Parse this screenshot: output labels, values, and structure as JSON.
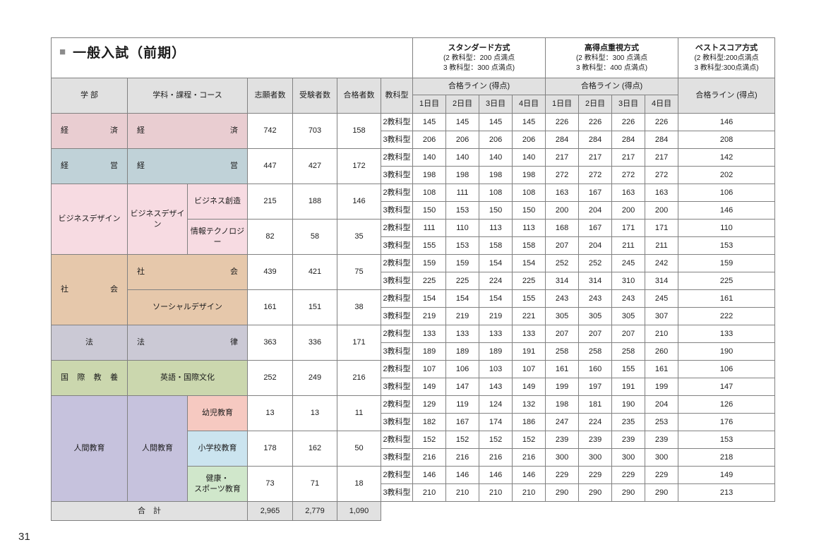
{
  "page": {
    "title_square": "■",
    "title": "一般入試（前期）",
    "page_number": "31"
  },
  "colors": {
    "header_bg": "#e1e1e1",
    "total_bg": "#e1e1e1",
    "border": "#818181",
    "title_square": "#8c8c8c"
  },
  "table": {
    "method_headers": [
      {
        "lines": [
          "スタンダード方式",
          "(2 教科型：200 点満点",
          "3 教科型：300 点満点)"
        ]
      },
      {
        "lines": [
          "高得点重視方式",
          "(2 教科型：300 点満点",
          "3 教科型：400 点満点)"
        ]
      },
      {
        "lines": [
          "ベストスコア方式",
          "(2 教科型:200点満点",
          "3 教科型:300点満点)"
        ]
      }
    ],
    "headers": {
      "faculty": "学 部",
      "department": "学科・課程・コース",
      "applicants": "志願者数",
      "examinees": "受験者数",
      "accepted": "合格者数",
      "subject_type": "教科型",
      "pass_line": "合格ライン (得点)",
      "days": [
        "1日目",
        "2日目",
        "3日目",
        "4日目"
      ]
    },
    "groups": [
      {
        "faculty": "経済",
        "dist": true,
        "color": "#e9cdd1",
        "departments": [
          {
            "name": "経済",
            "dist": true,
            "full": true,
            "courses": [
              {
                "name": null,
                "applicants": "742",
                "examinees": "703",
                "accepted": "158",
                "type_rows": [
                  {
                    "type": "2教科型",
                    "std": [
                      "145",
                      "145",
                      "145",
                      "145"
                    ],
                    "high": [
                      "226",
                      "226",
                      "226",
                      "226"
                    ],
                    "best": "146"
                  },
                  {
                    "type": "3教科型",
                    "std": [
                      "206",
                      "206",
                      "206",
                      "206"
                    ],
                    "high": [
                      "284",
                      "284",
                      "284",
                      "284"
                    ],
                    "best": "208"
                  }
                ]
              }
            ]
          }
        ]
      },
      {
        "faculty": "経営",
        "dist": true,
        "color": "#c0d2d8",
        "departments": [
          {
            "name": "経営",
            "dist": true,
            "full": true,
            "courses": [
              {
                "name": null,
                "applicants": "447",
                "examinees": "427",
                "accepted": "172",
                "type_rows": [
                  {
                    "type": "2教科型",
                    "std": [
                      "140",
                      "140",
                      "140",
                      "140"
                    ],
                    "high": [
                      "217",
                      "217",
                      "217",
                      "217"
                    ],
                    "best": "142"
                  },
                  {
                    "type": "3教科型",
                    "std": [
                      "198",
                      "198",
                      "198",
                      "198"
                    ],
                    "high": [
                      "272",
                      "272",
                      "272",
                      "272"
                    ],
                    "best": "202"
                  }
                ]
              }
            ]
          }
        ]
      },
      {
        "faculty": "ビジネスデザイン",
        "dist": false,
        "color": "#f7dbe2",
        "departments": [
          {
            "name": "ビジネスデザイン",
            "dist": false,
            "full": false,
            "courses": [
              {
                "name": "ビジネス創造",
                "applicants": "215",
                "examinees": "188",
                "accepted": "146",
                "type_rows": [
                  {
                    "type": "2教科型",
                    "std": [
                      "108",
                      "111",
                      "108",
                      "108"
                    ],
                    "high": [
                      "163",
                      "167",
                      "163",
                      "163"
                    ],
                    "best": "106"
                  },
                  {
                    "type": "3教科型",
                    "std": [
                      "150",
                      "153",
                      "150",
                      "150"
                    ],
                    "high": [
                      "200",
                      "204",
                      "200",
                      "200"
                    ],
                    "best": "146"
                  }
                ]
              },
              {
                "name": "情報テクノロジー",
                "applicants": "82",
                "examinees": "58",
                "accepted": "35",
                "type_rows": [
                  {
                    "type": "2教科型",
                    "std": [
                      "111",
                      "110",
                      "113",
                      "113"
                    ],
                    "high": [
                      "168",
                      "167",
                      "171",
                      "171"
                    ],
                    "best": "110"
                  },
                  {
                    "type": "3教科型",
                    "std": [
                      "155",
                      "153",
                      "158",
                      "158"
                    ],
                    "high": [
                      "207",
                      "204",
                      "211",
                      "211"
                    ],
                    "best": "153"
                  }
                ]
              }
            ]
          }
        ]
      },
      {
        "faculty": "社会",
        "dist": true,
        "color": "#e6c8ab",
        "departments": [
          {
            "name": "社会",
            "dist": true,
            "full": true,
            "courses": [
              {
                "name": null,
                "applicants": "439",
                "examinees": "421",
                "accepted": "75",
                "type_rows": [
                  {
                    "type": "2教科型",
                    "std": [
                      "159",
                      "159",
                      "154",
                      "154"
                    ],
                    "high": [
                      "252",
                      "252",
                      "245",
                      "242"
                    ],
                    "best": "159"
                  },
                  {
                    "type": "3教科型",
                    "std": [
                      "225",
                      "225",
                      "224",
                      "225"
                    ],
                    "high": [
                      "314",
                      "314",
                      "310",
                      "314"
                    ],
                    "best": "225"
                  }
                ]
              }
            ]
          },
          {
            "name": "ソーシャルデザイン",
            "dist": false,
            "full": true,
            "courses": [
              {
                "name": null,
                "applicants": "161",
                "examinees": "151",
                "accepted": "38",
                "type_rows": [
                  {
                    "type": "2教科型",
                    "std": [
                      "154",
                      "154",
                      "154",
                      "155"
                    ],
                    "high": [
                      "243",
                      "243",
                      "243",
                      "245"
                    ],
                    "best": "161"
                  },
                  {
                    "type": "3教科型",
                    "std": [
                      "219",
                      "219",
                      "219",
                      "221"
                    ],
                    "high": [
                      "305",
                      "305",
                      "305",
                      "307"
                    ],
                    "best": "222"
                  }
                ]
              }
            ]
          }
        ]
      },
      {
        "faculty": "法",
        "dist": false,
        "color": "#cbc9d5",
        "departments": [
          {
            "name": "法律",
            "dist": true,
            "full": true,
            "courses": [
              {
                "name": null,
                "applicants": "363",
                "examinees": "336",
                "accepted": "171",
                "type_rows": [
                  {
                    "type": "2教科型",
                    "std": [
                      "133",
                      "133",
                      "133",
                      "133"
                    ],
                    "high": [
                      "207",
                      "207",
                      "207",
                      "210"
                    ],
                    "best": "133"
                  },
                  {
                    "type": "3教科型",
                    "std": [
                      "189",
                      "189",
                      "189",
                      "191"
                    ],
                    "high": [
                      "258",
                      "258",
                      "258",
                      "260"
                    ],
                    "best": "190"
                  }
                ]
              }
            ]
          }
        ]
      },
      {
        "faculty": "国際教養",
        "dist": true,
        "color": "#cbd7ae",
        "departments": [
          {
            "name": "英語・国際文化",
            "dist": false,
            "full": true,
            "courses": [
              {
                "name": null,
                "applicants": "252",
                "examinees": "249",
                "accepted": "216",
                "type_rows": [
                  {
                    "type": "2教科型",
                    "std": [
                      "107",
                      "106",
                      "103",
                      "107"
                    ],
                    "high": [
                      "161",
                      "160",
                      "155",
                      "161"
                    ],
                    "best": "106"
                  },
                  {
                    "type": "3教科型",
                    "std": [
                      "149",
                      "147",
                      "143",
                      "149"
                    ],
                    "high": [
                      "199",
                      "197",
                      "191",
                      "199"
                    ],
                    "best": "147"
                  }
                ]
              }
            ]
          }
        ]
      },
      {
        "faculty": "人間教育",
        "dist": false,
        "color": "#c6c2dd",
        "departments": [
          {
            "name": "人間教育",
            "dist": false,
            "full": false,
            "courses": [
              {
                "name": "幼児教育",
                "color": "#f6c9c1",
                "applicants": "13",
                "examinees": "13",
                "accepted": "11",
                "type_rows": [
                  {
                    "type": "2教科型",
                    "std": [
                      "129",
                      "119",
                      "124",
                      "132"
                    ],
                    "high": [
                      "198",
                      "181",
                      "190",
                      "204"
                    ],
                    "best": "126"
                  },
                  {
                    "type": "3教科型",
                    "std": [
                      "182",
                      "167",
                      "174",
                      "186"
                    ],
                    "high": [
                      "247",
                      "224",
                      "235",
                      "253"
                    ],
                    "best": "176"
                  }
                ]
              },
              {
                "name": "小学校教育",
                "color": "#cbe4ef",
                "applicants": "178",
                "examinees": "162",
                "accepted": "50",
                "type_rows": [
                  {
                    "type": "2教科型",
                    "std": [
                      "152",
                      "152",
                      "152",
                      "152"
                    ],
                    "high": [
                      "239",
                      "239",
                      "239",
                      "239"
                    ],
                    "best": "153"
                  },
                  {
                    "type": "3教科型",
                    "std": [
                      "216",
                      "216",
                      "216",
                      "216"
                    ],
                    "high": [
                      "300",
                      "300",
                      "300",
                      "300"
                    ],
                    "best": "218"
                  }
                ]
              },
              {
                "name": "健康・\nスポーツ教育",
                "color": "#d0e7cb",
                "applicants": "73",
                "examinees": "71",
                "accepted": "18",
                "type_rows": [
                  {
                    "type": "2教科型",
                    "std": [
                      "146",
                      "146",
                      "146",
                      "146"
                    ],
                    "high": [
                      "229",
                      "229",
                      "229",
                      "229"
                    ],
                    "best": "149"
                  },
                  {
                    "type": "3教科型",
                    "std": [
                      "210",
                      "210",
                      "210",
                      "210"
                    ],
                    "high": [
                      "290",
                      "290",
                      "290",
                      "290"
                    ],
                    "best": "213"
                  }
                ]
              }
            ]
          }
        ]
      }
    ],
    "total": {
      "label": "合　計",
      "applicants": "2,965",
      "examinees": "2,779",
      "accepted": "1,090"
    }
  }
}
